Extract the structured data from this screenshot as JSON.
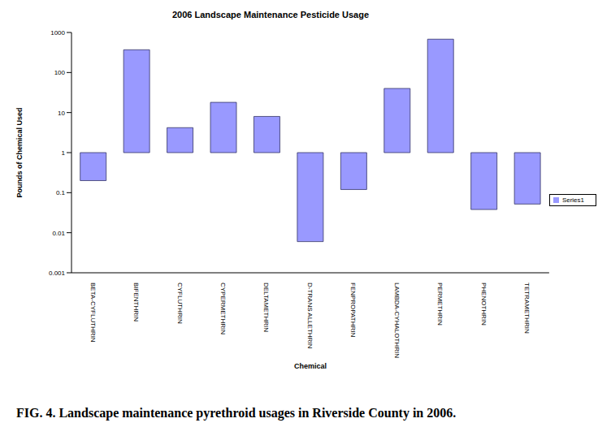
{
  "chart_data": {
    "type": "bar",
    "title": "2006 Landscape Maintenance Pesticide Usage",
    "caption": "FIG. 4. Landscape maintenance pyrethroid usages in Riverside County in 2006.",
    "x_label": "Chemical",
    "y_label": "Pounds of Chemical Used",
    "categories": [
      "BETA-CYFLUTHRIN",
      "BIFENTHRIN",
      "CYFLUTHRIN",
      "CYPERMETHRIN",
      "DELTAMETHRIN",
      "D-TRANS ALLETHRIN",
      "FENPROPATHRIN",
      "LAMBDA-CYHALOTHRIN",
      "PERMETHRIN",
      "PHENOTHRIN",
      "TETRAMETHRIN"
    ],
    "series": [
      {
        "name": "Series1",
        "color": "#9999ff",
        "values": [
          0.2,
          370,
          4.2,
          18,
          8,
          0.006,
          0.12,
          40,
          680,
          0.038,
          0.052
        ]
      }
    ],
    "ylim": [
      0.001,
      1000
    ],
    "yticks": [
      0.001,
      0.01,
      0.1,
      1,
      10,
      100,
      1000
    ],
    "log": "y",
    "grid": false,
    "legend": "right"
  }
}
